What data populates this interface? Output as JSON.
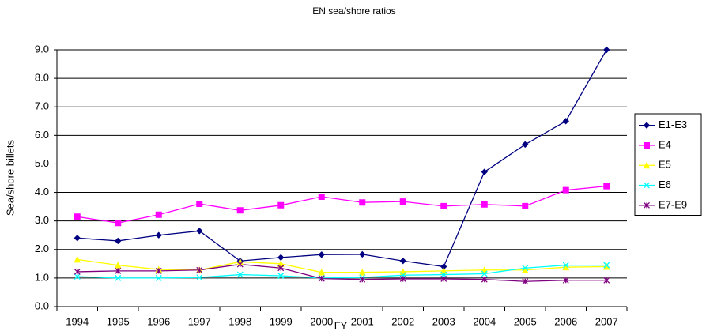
{
  "chart_data": {
    "type": "line",
    "title": "EN sea/shore ratios",
    "x_label": "FY",
    "y_label": "Sea/shore billets",
    "categories": [
      "1994",
      "1995",
      "1996",
      "1997",
      "1998",
      "1999",
      "2000",
      "2001",
      "2002",
      "2003",
      "2004",
      "2005",
      "2006",
      "2007"
    ],
    "series": [
      {
        "name": "E1-E3",
        "color": "#000080",
        "marker": "diamond",
        "values": [
          2.4,
          2.3,
          2.5,
          2.65,
          1.6,
          1.72,
          1.82,
          1.83,
          1.6,
          1.4,
          4.72,
          5.68,
          6.5,
          9.0
        ]
      },
      {
        "name": "E4",
        "color": "#ff00ff",
        "marker": "square",
        "values": [
          3.15,
          2.93,
          3.22,
          3.6,
          3.37,
          3.55,
          3.85,
          3.65,
          3.68,
          3.52,
          3.58,
          3.52,
          4.08,
          4.22
        ]
      },
      {
        "name": "E5",
        "color": "#ffff00",
        "marker": "triangle",
        "values": [
          1.65,
          1.45,
          1.3,
          1.28,
          1.57,
          1.5,
          1.2,
          1.2,
          1.22,
          1.25,
          1.28,
          1.28,
          1.38,
          1.4
        ]
      },
      {
        "name": "E6",
        "color": "#00ffff",
        "marker": "x",
        "values": [
          1.05,
          1.0,
          1.0,
          1.02,
          1.12,
          1.08,
          1.0,
          1.02,
          1.1,
          1.12,
          1.15,
          1.35,
          1.45,
          1.45
        ]
      },
      {
        "name": "E7-E9",
        "color": "#800080",
        "marker": "star",
        "values": [
          1.22,
          1.25,
          1.25,
          1.28,
          1.48,
          1.35,
          0.98,
          0.95,
          0.97,
          0.97,
          0.95,
          0.88,
          0.92,
          0.92
        ]
      }
    ],
    "ylim": [
      0,
      9
    ],
    "yticks": [
      {
        "value": 0,
        "label": "0.0"
      },
      {
        "value": 1,
        "label": "1.0"
      },
      {
        "value": 2,
        "label": "2.0"
      },
      {
        "value": 3,
        "label": "3.0"
      },
      {
        "value": 4,
        "label": "4.0"
      },
      {
        "value": 5,
        "label": "5.0"
      },
      {
        "value": 6,
        "label": "6.0"
      },
      {
        "value": 7,
        "label": "7.0"
      },
      {
        "value": 8,
        "label": "8.0"
      },
      {
        "value": 9,
        "label": "9.0"
      }
    ],
    "grid": true,
    "legend": "right"
  }
}
